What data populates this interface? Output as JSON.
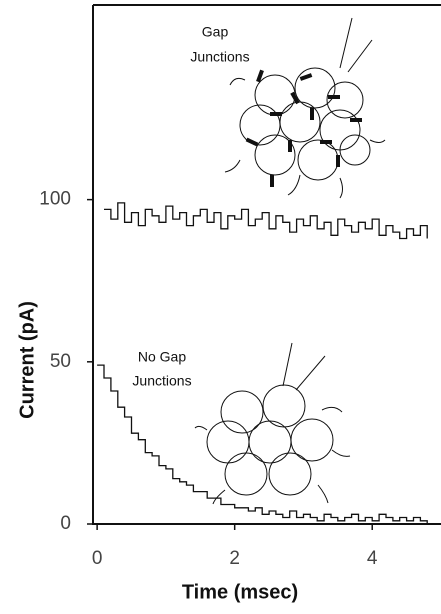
{
  "chart_data": {
    "type": "line",
    "xlabel": "Time (msec)",
    "ylabel": "Current (pA)",
    "annotations": [
      [
        "Gap",
        "Junctions"
      ],
      [
        "No Gap",
        "Junctions"
      ]
    ],
    "x": [
      0,
      0.1,
      0.2,
      0.3,
      0.4,
      0.5,
      0.6,
      0.7,
      0.8,
      0.9,
      1.0,
      1.1,
      1.2,
      1.3,
      1.4,
      1.5,
      1.6,
      1.7,
      1.8,
      1.9,
      2.0,
      2.1,
      2.2,
      2.3,
      2.4,
      2.5,
      2.6,
      2.7,
      2.8,
      2.9,
      3.0,
      3.1,
      3.2,
      3.3,
      3.4,
      3.5,
      3.6,
      3.7,
      3.8,
      3.9,
      4.0,
      4.1,
      4.2,
      4.3,
      4.4,
      4.5,
      4.6,
      4.7,
      4.8
    ],
    "series": [
      {
        "color": "#111111",
        "values": [
          null,
          97,
          94,
          99,
          93,
          96,
          92,
          97,
          95,
          93,
          98,
          94,
          96,
          92,
          95,
          97,
          93,
          96,
          91,
          95,
          94,
          97,
          92,
          94,
          96,
          91,
          95,
          93,
          90,
          94,
          92,
          95,
          91,
          93,
          89,
          94,
          92,
          90,
          93,
          91,
          94,
          89,
          92,
          90,
          88,
          91,
          89,
          92,
          88
        ]
      },
      {
        "color": "#111111",
        "values": [
          49,
          45,
          41,
          36,
          33,
          28,
          26,
          22,
          21,
          18,
          17,
          14,
          13,
          12,
          10,
          10,
          8,
          8,
          6,
          6,
          5,
          5,
          4,
          5,
          3,
          4,
          3,
          2,
          4,
          2,
          3,
          2,
          1,
          3,
          2,
          1,
          2,
          3,
          1,
          2,
          1,
          3,
          2,
          1,
          2,
          1,
          2,
          1,
          0
        ]
      }
    ],
    "xlim": [
      -0.06,
      5.0
    ],
    "ylim": [
      0,
      160
    ],
    "xticks": [
      0,
      2,
      4
    ],
    "yticks": [
      0,
      50,
      100
    ]
  }
}
